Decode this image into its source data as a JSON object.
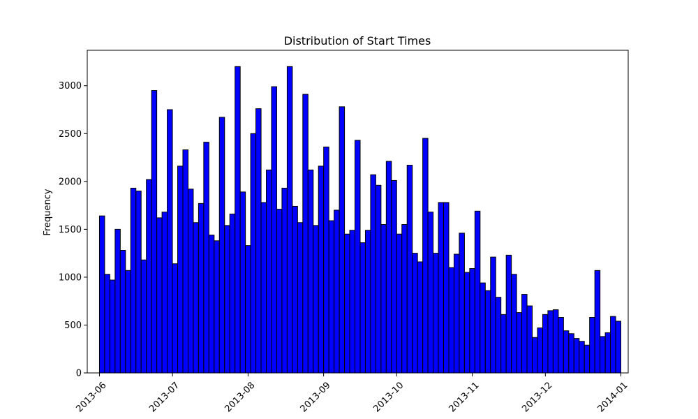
{
  "chart_data": {
    "type": "bar",
    "title": "Distribution of Start Times",
    "xlabel": "",
    "ylabel": "Frequency",
    "xlim": [
      "2013-05-27",
      "2014-01-04"
    ],
    "ylim": [
      0,
      3370
    ],
    "grid": false,
    "bar_color": "#0000ff",
    "edge_color": "#000000",
    "x_ticks": [
      "2013-06",
      "2013-07",
      "2013-08",
      "2013-09",
      "2013-10",
      "2013-11",
      "2013-12",
      "2014-01"
    ],
    "y_ticks": [
      0,
      500,
      1000,
      1500,
      2000,
      2500,
      3000
    ],
    "bins": {
      "start": "2013-06-01",
      "end": "2014-01-01",
      "count": 100
    },
    "values": [
      1640,
      1030,
      970,
      1500,
      1280,
      1070,
      1930,
      1900,
      1180,
      2020,
      2950,
      1620,
      1680,
      2750,
      1140,
      2160,
      2330,
      1920,
      1570,
      1770,
      2410,
      1440,
      1380,
      2670,
      1540,
      1660,
      3200,
      1890,
      1330,
      2500,
      2760,
      1780,
      2120,
      2990,
      1710,
      1930,
      3200,
      1740,
      1570,
      2910,
      2120,
      1540,
      2160,
      2360,
      1590,
      1700,
      2780,
      1450,
      1490,
      2430,
      1360,
      1490,
      2070,
      1960,
      1550,
      2210,
      2010,
      1450,
      1550,
      2170,
      1250,
      1160,
      2450,
      1680,
      1250,
      1780,
      1780,
      1100,
      1240,
      1460,
      1050,
      1090,
      1690,
      940,
      860,
      1210,
      790,
      610,
      1230,
      1030,
      630,
      820,
      700,
      370,
      470,
      610,
      650,
      660,
      580,
      440,
      410,
      360,
      330,
      290,
      580,
      1070,
      380,
      420,
      590,
      540
    ]
  }
}
